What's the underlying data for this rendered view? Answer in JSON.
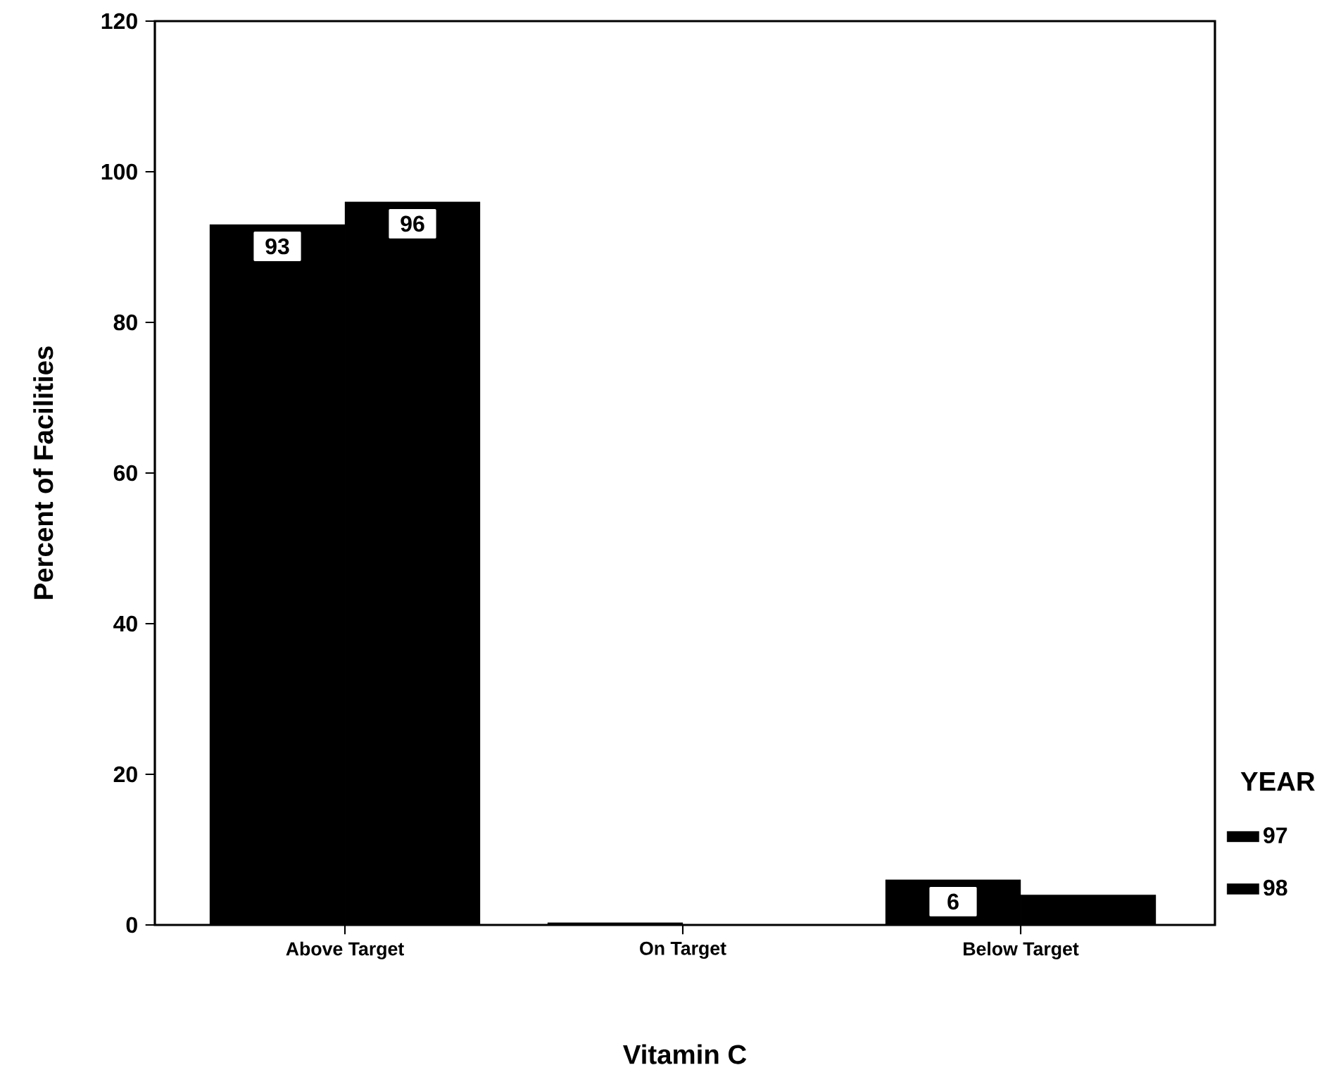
{
  "chart_data": {
    "type": "bar",
    "xlabel": "Vitamin C",
    "ylabel": "Percent of Facilities",
    "legend_title": "YEAR",
    "categories": [
      "Above Target",
      "On Target",
      "Below Target"
    ],
    "series": [
      {
        "name": "97",
        "color": "#000000",
        "values": [
          93,
          0.3,
          6
        ],
        "value_labels": [
          "93",
          null,
          "6"
        ]
      },
      {
        "name": "98",
        "color": "#000000",
        "values": [
          96,
          0,
          4
        ],
        "value_labels": [
          "96",
          null,
          null
        ]
      }
    ],
    "ylim": [
      0,
      120
    ],
    "yticks": [
      0,
      20,
      40,
      60,
      80,
      100,
      120
    ],
    "grid": false,
    "legend": "right"
  }
}
